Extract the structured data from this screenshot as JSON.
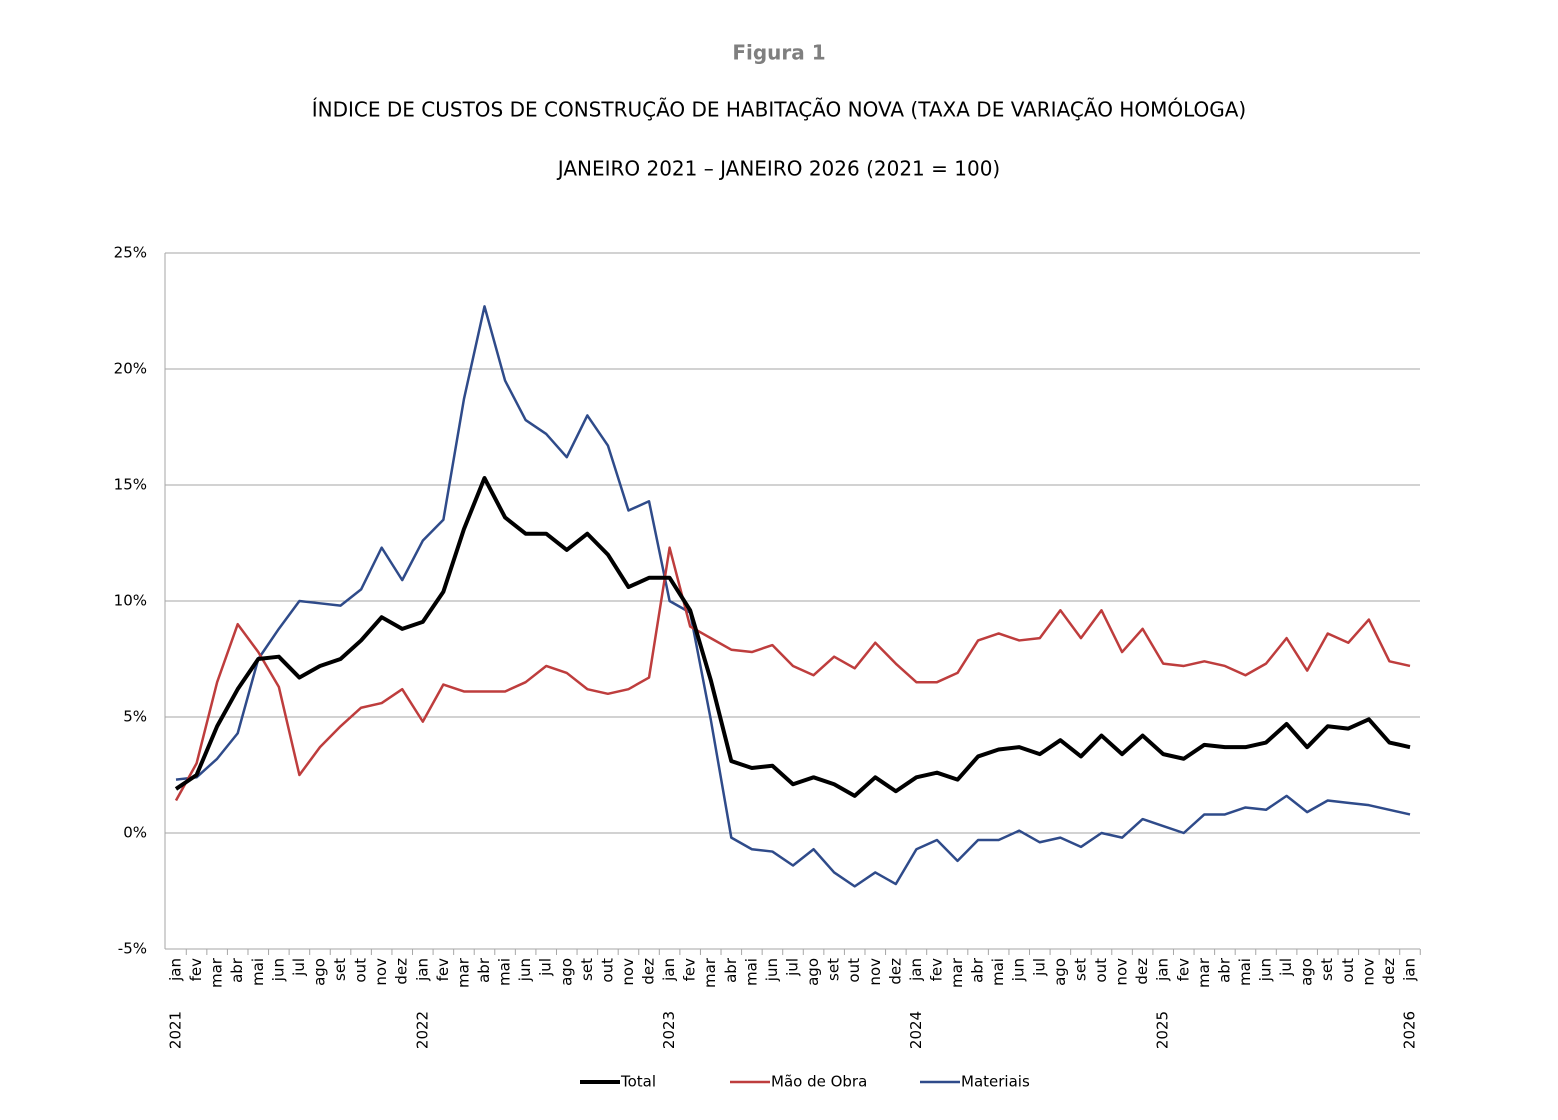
{
  "chart_data": {
    "type": "line",
    "figure_label": "Figura 1",
    "title": "ÍNDICE DE CUSTOS DE CONSTRUÇÃO DE HABITAÇÃO NOVA (TAXA DE VARIAÇÃO HOMÓLOGA)",
    "subtitle": "JANEIRO 2021 – JANEIRO 2026 (2021 = 100)",
    "categories": [
      "jan",
      "fev",
      "mar",
      "abr",
      "mai",
      "jun",
      "jul",
      "ago",
      "set",
      "out",
      "nov",
      "dez",
      "jan",
      "fev",
      "mar",
      "abr",
      "mai",
      "jun",
      "jul",
      "ago",
      "set",
      "out",
      "nov",
      "dez",
      "jan",
      "fev",
      "mar",
      "abr",
      "mai",
      "jun",
      "jul",
      "ago",
      "set",
      "out",
      "nov",
      "dez",
      "jan",
      "fev",
      "mar",
      "abr",
      "mai",
      "jun",
      "jul",
      "ago",
      "set",
      "out",
      "nov",
      "dez",
      "jan",
      "fev",
      "mar",
      "abr",
      "mai",
      "jun",
      "jul",
      "ago",
      "set",
      "out",
      "nov",
      "dez",
      "jan"
    ],
    "year_labels": [
      "2021",
      "2022",
      "2023",
      "2024",
      "2025",
      "2026"
    ],
    "series": [
      {
        "name": "Total",
        "color": "#000000",
        "width": 4,
        "values": [
          1.9,
          2.5,
          4.6,
          6.2,
          7.5,
          7.6,
          6.7,
          7.2,
          7.5,
          8.3,
          9.3,
          8.8,
          9.1,
          10.4,
          13.1,
          15.3,
          13.6,
          12.9,
          12.9,
          12.2,
          12.9,
          12.0,
          10.6,
          11.0,
          11.0,
          9.6,
          6.6,
          3.1,
          2.8,
          2.9,
          2.1,
          2.4,
          2.1,
          1.6,
          2.4,
          1.8,
          2.4,
          2.6,
          2.3,
          3.3,
          3.6,
          3.7,
          3.4,
          4.0,
          3.3,
          4.2,
          3.4,
          4.2,
          3.4,
          3.2,
          3.8,
          3.7,
          3.7,
          3.9,
          4.7,
          3.7,
          4.6,
          4.5,
          4.9,
          3.9,
          3.7
        ]
      },
      {
        "name": "Mão de Obra",
        "color": "#be3d3d",
        "width": 2.5,
        "values": [
          1.4,
          3.0,
          6.5,
          9.0,
          7.8,
          6.3,
          2.5,
          3.7,
          4.6,
          5.4,
          5.6,
          6.2,
          4.8,
          6.4,
          6.1,
          6.1,
          6.1,
          6.5,
          7.2,
          6.9,
          6.2,
          6.0,
          6.2,
          6.7,
          12.3,
          8.9,
          8.4,
          7.9,
          7.8,
          8.1,
          7.2,
          6.8,
          7.6,
          7.1,
          8.2,
          7.3,
          6.5,
          6.5,
          6.9,
          8.3,
          8.6,
          8.3,
          8.4,
          9.6,
          8.4,
          9.6,
          7.8,
          8.8,
          7.3,
          7.2,
          7.4,
          7.2,
          6.8,
          7.3,
          8.4,
          7.0,
          8.6,
          8.2,
          9.2,
          7.4,
          7.2
        ]
      },
      {
        "name": "Materiais",
        "color": "#2f4b8a",
        "width": 2.5,
        "values": [
          2.3,
          2.4,
          3.2,
          4.3,
          7.5,
          8.8,
          10.0,
          9.9,
          9.8,
          10.5,
          12.3,
          10.9,
          12.6,
          13.5,
          18.7,
          22.7,
          19.5,
          17.8,
          17.2,
          16.2,
          18.0,
          16.7,
          13.9,
          14.3,
          10.0,
          9.5,
          4.9,
          -0.2,
          -0.7,
          -0.8,
          -1.4,
          -0.7,
          -1.7,
          -2.3,
          -1.7,
          -2.2,
          -0.7,
          -0.3,
          -1.2,
          -0.3,
          -0.3,
          0.1,
          -0.4,
          -0.2,
          -0.6,
          0.0,
          -0.2,
          0.6,
          0.3,
          0.0,
          0.8,
          0.8,
          1.1,
          1.0,
          1.6,
          0.9,
          1.4,
          1.3,
          1.2,
          1.0,
          0.8
        ]
      }
    ],
    "ylim": [
      -5,
      25
    ],
    "yticks": [
      {
        "value": -5,
        "label": "-5%"
      },
      {
        "value": 0,
        "label": "0%"
      },
      {
        "value": 5,
        "label": "5%"
      },
      {
        "value": 10,
        "label": "10%"
      },
      {
        "value": 15,
        "label": "15%"
      },
      {
        "value": 20,
        "label": "20%"
      },
      {
        "value": 25,
        "label": "25%"
      }
    ],
    "grid": true,
    "legend": "bottom"
  }
}
